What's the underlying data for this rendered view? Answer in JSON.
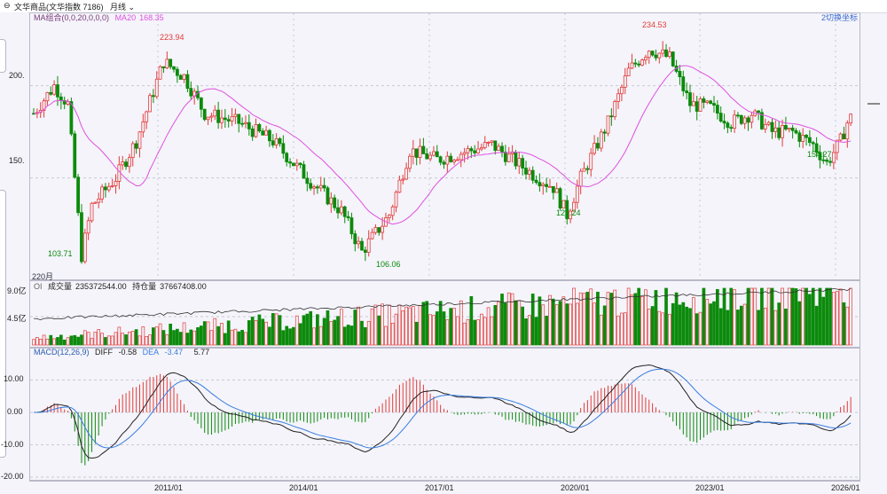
{
  "header": {
    "title": "文华商品(文华指数 7186)",
    "period": "月线",
    "ma_label": "MA组合(0,0,20,0,0,0)",
    "ma20_label": "MA20",
    "ma20_value": "168.35",
    "right_label": "2切换坐标"
  },
  "main_chart": {
    "yticks": [
      "200.",
      "150."
    ],
    "period_label": "220月",
    "annotations": [
      "223.94",
      "234.53",
      "103.71",
      "106.06",
      "127.24",
      "154.27"
    ]
  },
  "volume_panel": {
    "label": "OI",
    "volume_label": "成交量",
    "volume_value": "235372544.00",
    "oi_label": "持仓量",
    "oi_value": "37667408.00",
    "yticks": [
      "9.0亿",
      "4.5亿"
    ]
  },
  "macd_panel": {
    "label": "MACD(12,26,9)",
    "diff_label": "DIFF",
    "diff_value": "-0.58",
    "dea_label": "DEA",
    "dea_value": "-3.47",
    "macd_value": "5.77",
    "yticks": [
      "10.00",
      "0.00",
      "-10.00",
      "-20.00"
    ]
  },
  "x_axis": {
    "ticks": [
      "2011/01",
      "2014/01",
      "2017/01",
      "2020/01",
      "2023/01",
      "2026/01"
    ]
  },
  "colors": {
    "up": "#e23b3b",
    "down": "#0c8a0c",
    "ma20": "#e050e0",
    "diff": "#222222",
    "dea": "#3a7de0",
    "grid": "#c9c9d6"
  }
}
